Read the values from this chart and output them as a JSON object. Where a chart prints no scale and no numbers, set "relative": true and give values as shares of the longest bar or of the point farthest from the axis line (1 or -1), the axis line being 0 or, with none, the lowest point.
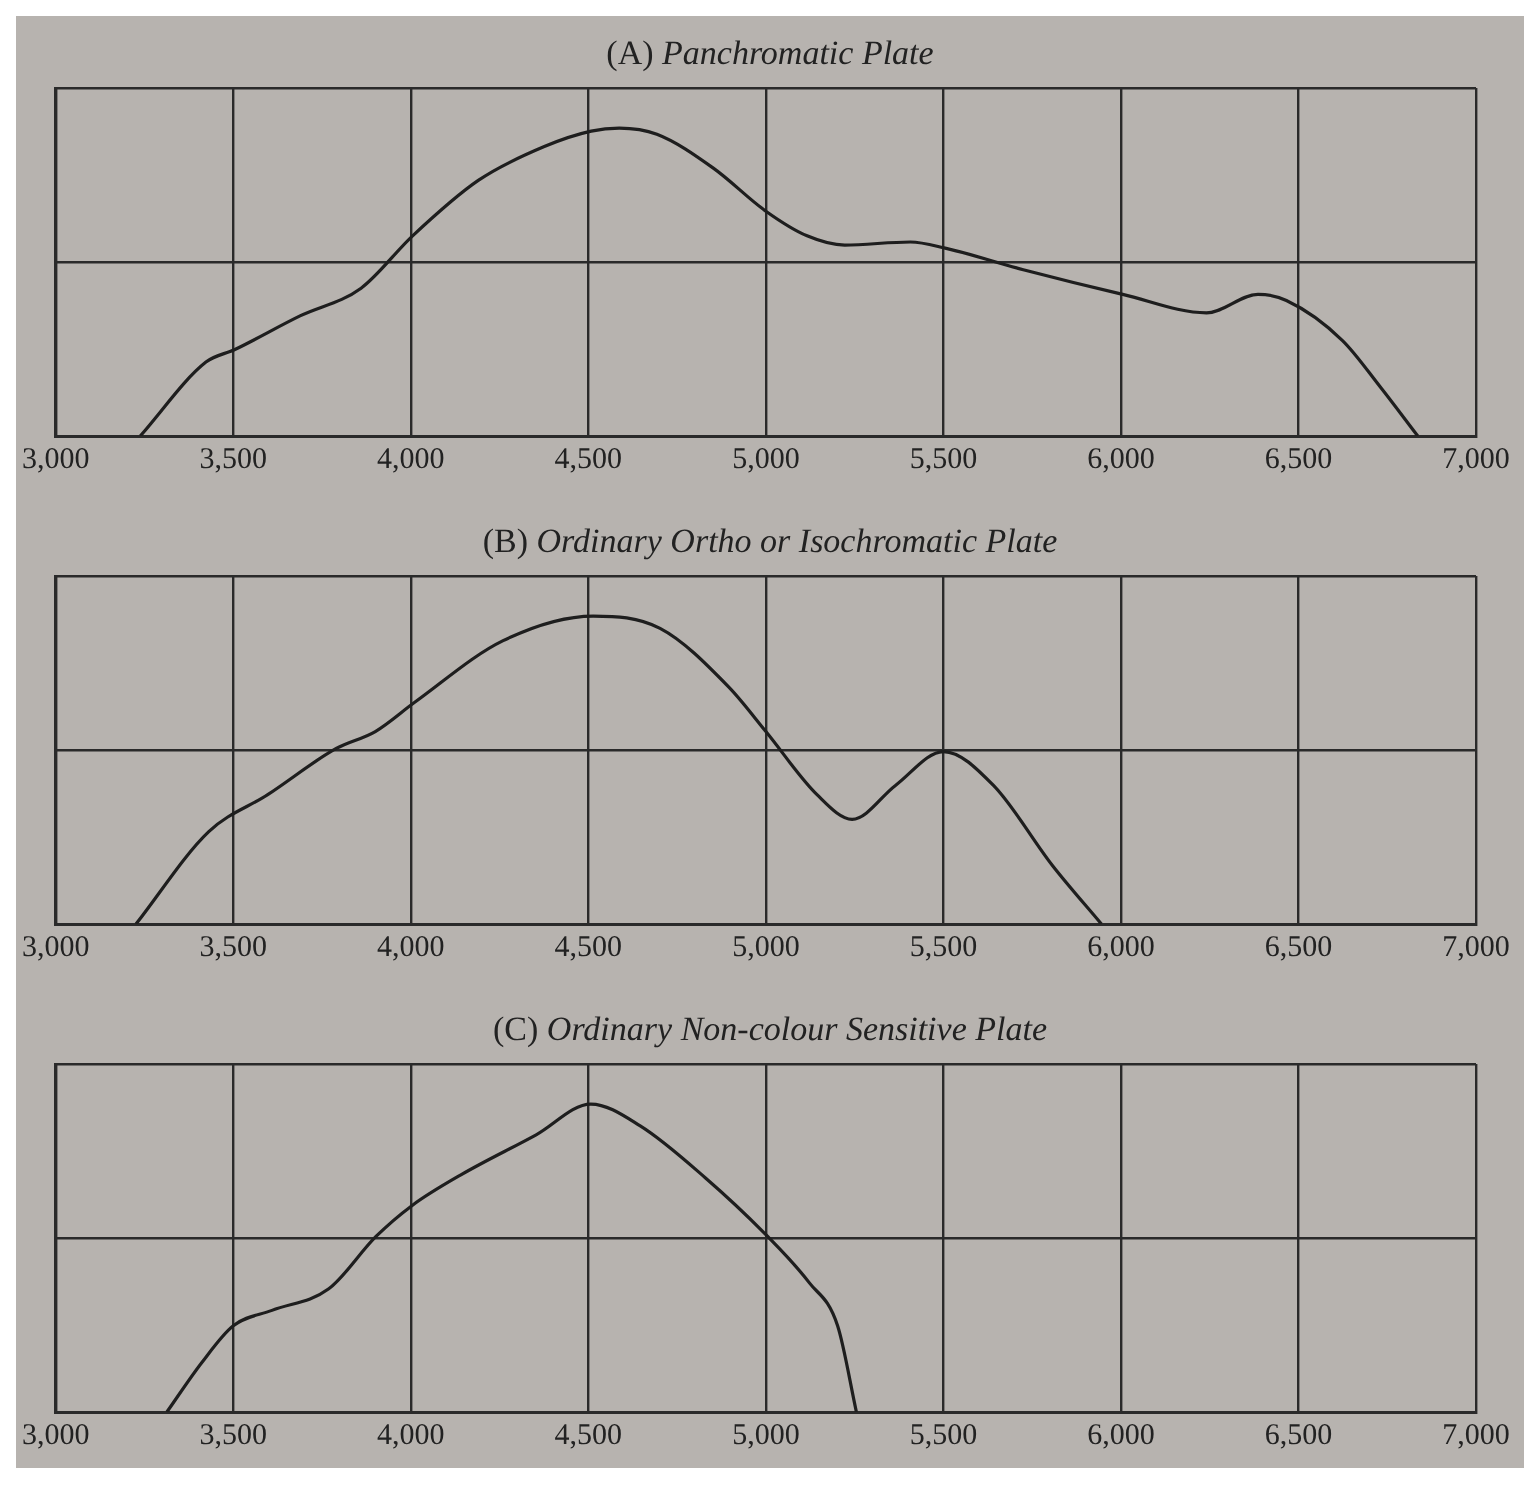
{
  "chart_data": [
    {
      "type": "line",
      "title": "(A) Panchromatic Plate",
      "relative": true,
      "grid": true,
      "marker": "none",
      "legend": false,
      "color": "#1e1e1e",
      "xlim": [
        3000,
        7000
      ],
      "xticks": [
        {
          "value": 3000,
          "label": "3,000"
        },
        {
          "value": 3500,
          "label": "3,500"
        },
        {
          "value": 4000,
          "label": "4,000"
        },
        {
          "value": 4500,
          "label": "4,500"
        },
        {
          "value": 5000,
          "label": "5,000"
        },
        {
          "value": 5500,
          "label": "5,500"
        },
        {
          "value": 6000,
          "label": "6,000"
        },
        {
          "value": 6500,
          "label": "6,500"
        },
        {
          "value": 7000,
          "label": "7,000"
        }
      ],
      "x": [
        3238,
        3423,
        3503,
        3688,
        3860,
        4005,
        4190,
        4376,
        4508,
        4587,
        4693,
        4852,
        5000,
        5116,
        5222,
        5407,
        5505,
        5725,
        6005,
        6241,
        6386,
        6466,
        6624,
        6730,
        6836
      ],
      "values": [
        0,
        0.24,
        0.28,
        0.39,
        0.48,
        0.65,
        0.83,
        0.94,
        0.99,
        1,
        0.98,
        0.87,
        0.73,
        0.65,
        0.62,
        0.63,
        0.61,
        0.54,
        0.46,
        0.4,
        0.46,
        0.44,
        0.31,
        0.16,
        0
      ]
    },
    {
      "type": "line",
      "title": "(B) Ordinary Ortho or Isochromatic Plate",
      "relative": true,
      "grid": true,
      "marker": "none",
      "legend": false,
      "color": "#1e1e1e",
      "xlim": [
        3000,
        7000
      ],
      "xticks": [
        {
          "value": 3000,
          "label": "3,000"
        },
        {
          "value": 3500,
          "label": "3,500"
        },
        {
          "value": 4000,
          "label": "4,000"
        },
        {
          "value": 4500,
          "label": "4,500"
        },
        {
          "value": 5000,
          "label": "5,000"
        },
        {
          "value": 5500,
          "label": "5,500"
        },
        {
          "value": 6000,
          "label": "6,000"
        },
        {
          "value": 6500,
          "label": "6,500"
        },
        {
          "value": 7000,
          "label": "7,000"
        }
      ],
      "x": [
        3226,
        3431,
        3597,
        3790,
        3900,
        4011,
        4260,
        4514,
        4702,
        4895,
        5000,
        5144,
        5243,
        5365,
        5500,
        5641,
        5807,
        5945
      ],
      "values": [
        0,
        0.3,
        0.42,
        0.57,
        0.625,
        0.72,
        0.92,
        1,
        0.96,
        0.77,
        0.625,
        0.42,
        0.34,
        0.45,
        0.56,
        0.45,
        0.19,
        0
      ]
    },
    {
      "type": "line",
      "title": "(C) Ordinary Non-colour Sensitive Plate",
      "relative": true,
      "grid": true,
      "marker": "none",
      "legend": false,
      "color": "#1e1e1e",
      "xlim": [
        3000,
        7000
      ],
      "xticks": [
        {
          "value": 3000,
          "label": "3,000"
        },
        {
          "value": 3500,
          "label": "3,500"
        },
        {
          "value": 4000,
          "label": "4,000"
        },
        {
          "value": 4500,
          "label": "4,500"
        },
        {
          "value": 5000,
          "label": "5,000"
        },
        {
          "value": 5500,
          "label": "5,500"
        },
        {
          "value": 6000,
          "label": "6,000"
        },
        {
          "value": 6500,
          "label": "6,500"
        },
        {
          "value": 7000,
          "label": "7,000"
        }
      ],
      "x": [
        3313,
        3411,
        3500,
        3609,
        3769,
        3902,
        4003,
        4141,
        4353,
        4507,
        4645,
        4830,
        5005,
        5122,
        5202,
        5255
      ],
      "values": [
        0,
        0.16,
        0.28,
        0.33,
        0.4,
        0.57,
        0.67,
        0.77,
        0.9,
        1,
        0.93,
        0.76,
        0.57,
        0.42,
        0.28,
        0
      ]
    }
  ]
}
